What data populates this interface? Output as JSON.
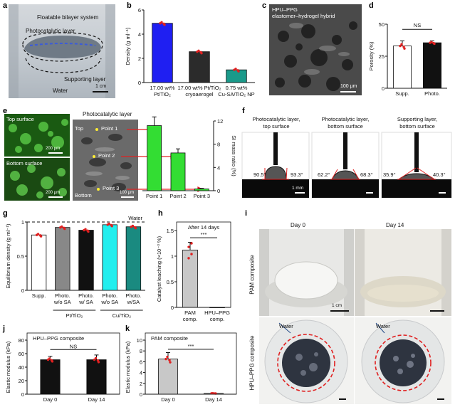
{
  "panels": {
    "a": {
      "letter": "a",
      "labels": {
        "bilayer": "Floatable bilayer system",
        "photocatalytic": "Photocatalytic layer",
        "supporting": "Supporting layer",
        "water": "Water",
        "scale": "1 cm"
      }
    },
    "b": {
      "letter": "b",
      "chart_data": {
        "type": "bar",
        "ylabel": "Density (g ml⁻¹)",
        "ylim": [
          0,
          6
        ],
        "yticks": [
          0,
          2,
          4,
          6
        ],
        "categories": [
          "17.00 wt% Pt/TiO₂",
          "17.00 wt% Pt/TiO₂ cryoaerogel",
          "0.75 wt% Cu-SA/TiO₂ NP"
        ],
        "category_lines": [
          [
            "17.00 wt%",
            "Pt/TiO₂"
          ],
          [
            "17.00 wt% Pt/TiO₂",
            "cryoaerogel"
          ],
          [
            "0.75 wt%",
            "Cu-SA/TiO₂ NP"
          ]
        ],
        "values": [
          4.9,
          2.55,
          1.05
        ],
        "colors": [
          "#1f1ff2",
          "#2b2b2b",
          "#1a9a8a"
        ]
      }
    },
    "c": {
      "letter": "c",
      "labels": {
        "line1": "HPU–PPG",
        "line2": "elastomer–hydrogel hybrid",
        "scale": "100 μm"
      }
    },
    "d": {
      "letter": "d",
      "chart_data": {
        "type": "bar",
        "ylabel": "Porosity (%)",
        "ylim": [
          0,
          50
        ],
        "yticks": [
          0,
          25,
          50
        ],
        "categories": [
          "Supp.",
          "Photo."
        ],
        "values": [
          33,
          35.5
        ],
        "errors": [
          4,
          1.5
        ],
        "colors": [
          "#ffffff",
          "#111111"
        ],
        "significance": "NS"
      }
    },
    "e": {
      "letter": "e",
      "labels": {
        "top_surface": "Top surface",
        "bottom_surface": "Bottom surface",
        "scale1": "200 μm",
        "scale2": "200 μm",
        "title": "Photocatalytic layer",
        "top": "Top",
        "bottom": "Bottom",
        "point1": "Point 1",
        "point2": "Point 2",
        "point3": "Point 3",
        "scale3": "100 μm"
      },
      "chart_data": {
        "type": "bar",
        "ylabel": "SI mass ratio (%)",
        "ylim": [
          0,
          12
        ],
        "yticks": [
          0,
          4,
          8,
          12
        ],
        "categories": [
          "Point 1",
          "Point 2",
          "Point 3"
        ],
        "values": [
          11.2,
          6.5,
          0.3
        ],
        "errors": [
          1.5,
          0.7,
          0.1
        ],
        "color": "#33dd33"
      }
    },
    "f": {
      "letter": "f",
      "labels": {
        "t1a": "Photocatalytic layer,",
        "t1b": "top surface",
        "t2a": "Photocatalytic layer,",
        "t2b": "bottom surface",
        "t3a": "Supporting layer,",
        "t3b": "bottom surface",
        "a1l": "90.5°",
        "a1r": "93.3°",
        "a2l": "62.2°",
        "a2r": "68.3°",
        "a3l": "35.9°",
        "a3r": "40.3°",
        "scale": "1 mm"
      }
    },
    "g": {
      "letter": "g",
      "chart_data": {
        "type": "bar",
        "ylabel": "Equilibrium density (g ml⁻¹)",
        "ylim": [
          0,
          1.0
        ],
        "yticks": [
          0,
          0.5,
          1.0
        ],
        "categories": [
          "Supp.",
          "Photo. w/o SA",
          "Photo. w/ SA",
          "Photo. w/o SA",
          "Photo. w/SA"
        ],
        "category_lines": [
          [
            "Supp."
          ],
          [
            "Photo.",
            "w/o SA"
          ],
          [
            "Photo.",
            "w/ SA"
          ],
          [
            "Photo.",
            "w/o SA"
          ],
          [
            "Photo.",
            "w/SA"
          ]
        ],
        "values": [
          0.81,
          0.92,
          0.88,
          0.96,
          0.93
        ],
        "colors": [
          "#ffffff",
          "#888888",
          "#111111",
          "#22eeee",
          "#1a8a80"
        ],
        "group_labels": [
          "Pt/TiO₂",
          "Cu/TiO₂"
        ],
        "reference_label": "Water",
        "reference_value": 1.0
      }
    },
    "h": {
      "letter": "h",
      "chart_data": {
        "type": "bar",
        "title": "After 14 days",
        "ylabel": "Catalyst leaching (×10⁻³ %)",
        "ylim": [
          0,
          1.5
        ],
        "yticks": [
          0,
          0.5,
          1.0,
          1.5
        ],
        "categories": [
          "PAM comp.",
          "HPU–PPG comp."
        ],
        "category_lines": [
          [
            "PAM",
            "comp."
          ],
          [
            "HPU–PPG",
            "comp."
          ]
        ],
        "values": [
          1.12,
          0.0
        ],
        "errors": [
          0.15,
          0.0
        ],
        "colors": [
          "#c8c8c8",
          "#ffffff"
        ],
        "significance": "***"
      }
    },
    "i": {
      "letter": "i",
      "labels": {
        "day0": "Day 0",
        "day14": "Day 14",
        "pam": "PAM composite",
        "hpu": "HPU–PPG composite",
        "water1": "Water",
        "water2": "Water",
        "scale": "1 cm"
      }
    },
    "j": {
      "letter": "j",
      "chart_data": {
        "type": "bar",
        "title": "HPU–PPG composite",
        "ylabel": "Elastic modulus (kPa)",
        "ylim": [
          0,
          80
        ],
        "yticks": [
          0,
          20,
          40,
          60,
          80
        ],
        "categories": [
          "Day 0",
          "Day 14"
        ],
        "values": [
          51,
          51
        ],
        "errors": [
          5,
          7
        ],
        "colors": [
          "#111111",
          "#111111"
        ],
        "significance": "NS"
      }
    },
    "k": {
      "letter": "k",
      "chart_data": {
        "type": "bar",
        "title": "PAM composite",
        "ylabel": "Elastic modulus (kPa)",
        "ylim": [
          0,
          10
        ],
        "yticks": [
          0,
          2,
          4,
          6,
          8,
          10
        ],
        "categories": [
          "Day 0",
          "Day 14"
        ],
        "values": [
          6.5,
          0.15
        ],
        "errors": [
          1.2,
          0.05
        ],
        "colors": [
          "#c8c8c8",
          "#c8c8c8"
        ],
        "significance": "***"
      }
    }
  }
}
